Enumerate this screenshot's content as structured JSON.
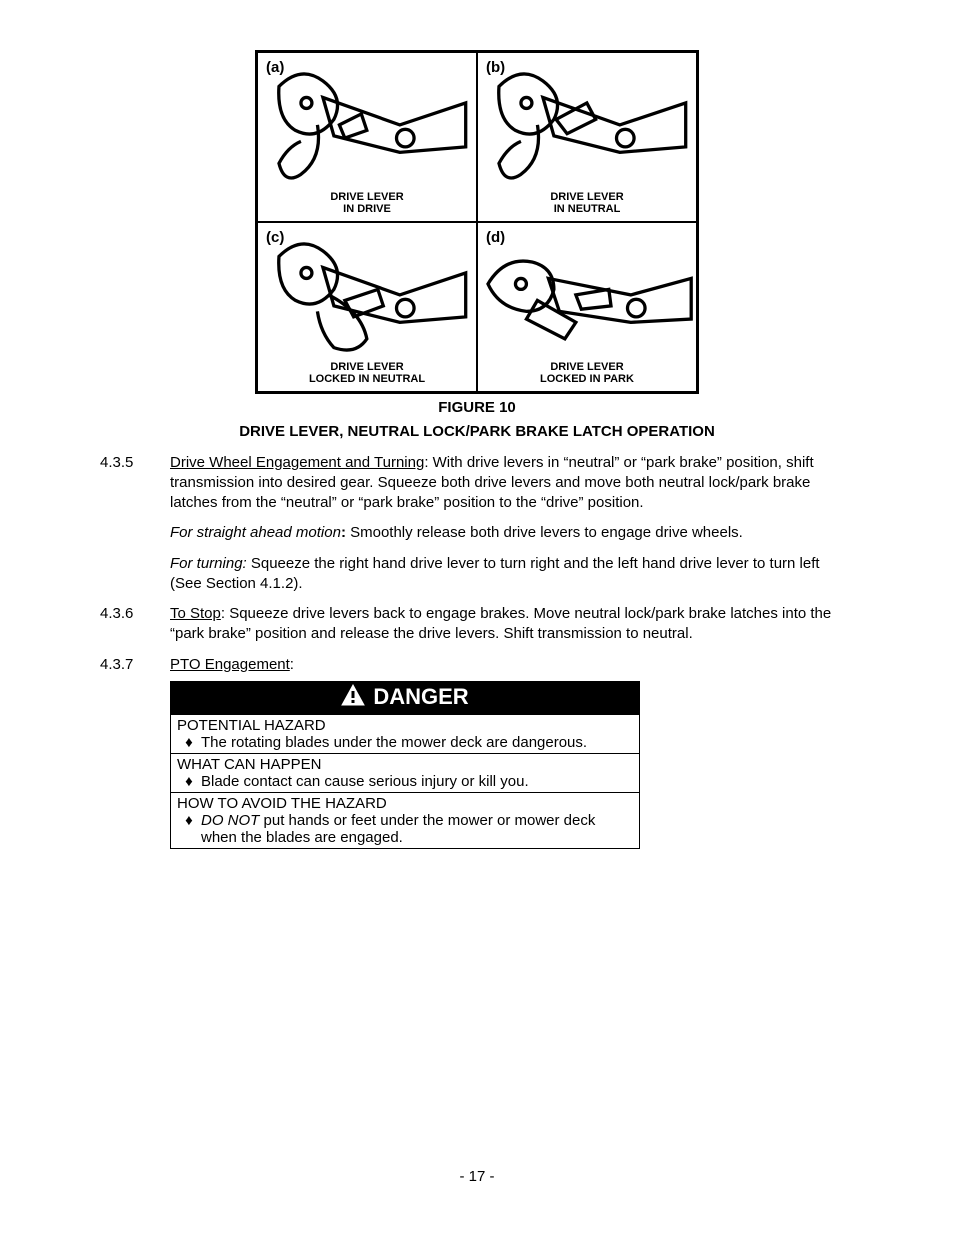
{
  "figure": {
    "cells": [
      {
        "tag": "(a)",
        "caption": "DRIVE LEVER\nIN DRIVE"
      },
      {
        "tag": "(b)",
        "caption": "DRIVE LEVER\nIN NEUTRAL"
      },
      {
        "tag": "(c)",
        "caption": "DRIVE LEVER\nLOCKED IN NEUTRAL"
      },
      {
        "tag": "(d)",
        "caption": "DRIVE LEVER\nLOCKED IN PARK"
      }
    ],
    "caption_line1": "FIGURE 10",
    "caption_line2": "DRIVE LEVER, NEUTRAL LOCK/PARK BRAKE LATCH OPERATION"
  },
  "sections": {
    "s435": {
      "num": "4.3.5",
      "title": "Drive Wheel Engagement and Turning",
      "body": ": With drive levers in “neutral” or “park brake” position, shift transmission into desired gear.  Squeeze both drive levers and move both neutral lock/park brake latches from the “neutral” or “park brake” position to the “drive” position."
    },
    "straight": {
      "lead_italic": "For straight ahead motion",
      "colon_bold": ":",
      "rest": " Smoothly release both drive levers to engage drive wheels."
    },
    "turning": {
      "lead_italic": "For turning:",
      "rest": " Squeeze the right hand drive lever to turn right and the left hand drive lever to turn left (See Section 4.1.2)."
    },
    "s436": {
      "num": "4.3.6",
      "title": "To Stop",
      "body": ": Squeeze drive levers back to engage brakes.  Move neutral lock/park brake latches into the “park brake” position and release the drive levers.  Shift transmission to neutral."
    },
    "s437": {
      "num": "4.3.7",
      "title": "PTO Engagement",
      "body": ":"
    }
  },
  "danger": {
    "header": "DANGER",
    "rows": [
      {
        "heading": "POTENTIAL HAZARD",
        "bullets": [
          {
            "text": "The rotating blades under the mower deck are dangerous."
          }
        ]
      },
      {
        "heading": "WHAT CAN HAPPEN",
        "bullets": [
          {
            "text": "Blade contact can cause serious injury or kill you."
          }
        ]
      },
      {
        "heading": "HOW TO AVOID THE HAZARD",
        "bullets": [
          {
            "html": "<i>DO NOT</i> put hands or feet under the mower or mower deck when the blades are engaged."
          }
        ]
      }
    ]
  },
  "page_number": "- 17 -",
  "colors": {
    "text": "#000000",
    "bg": "#ffffff"
  }
}
